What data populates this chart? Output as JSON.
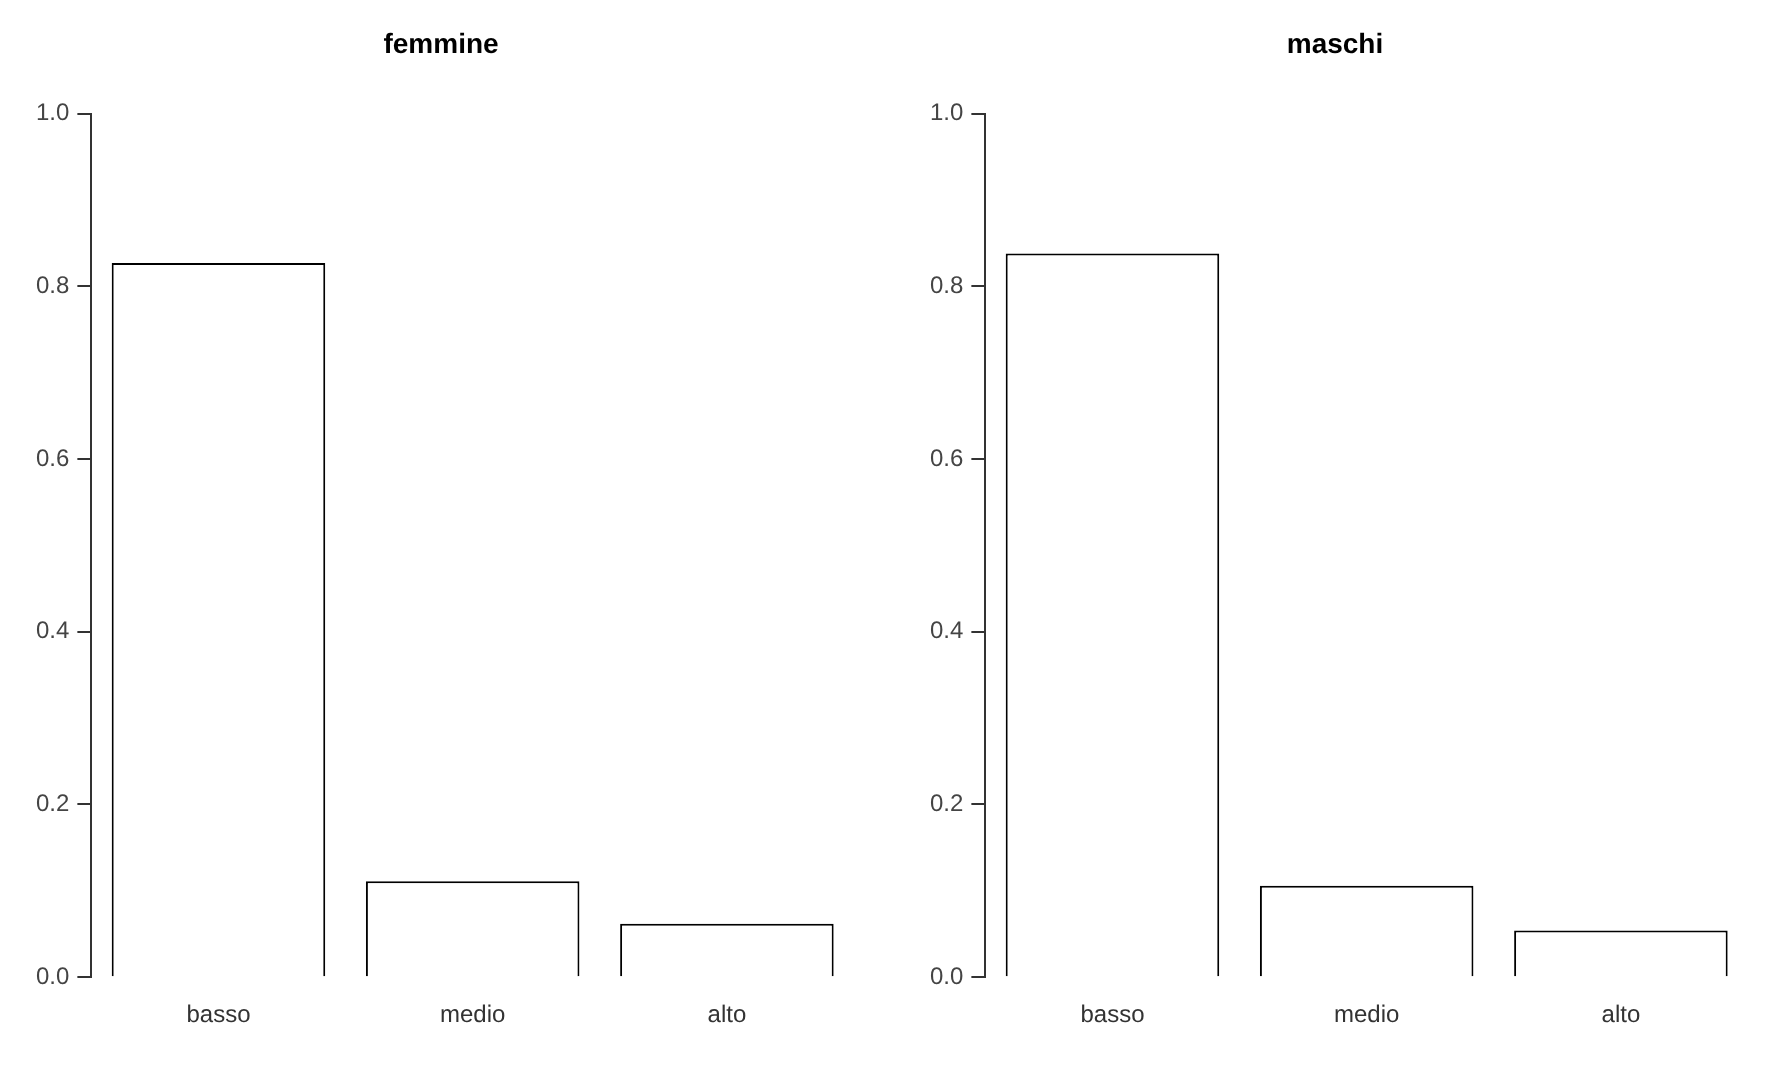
{
  "chart_data": [
    {
      "type": "bar",
      "title": "femmine",
      "categories": [
        "basso",
        "medio",
        "alto"
      ],
      "values": [
        0.827,
        0.111,
        0.062
      ],
      "color": "#ffffff",
      "ylim": [
        0,
        1
      ],
      "yticks": [
        {
          "value": 0,
          "label": "0.0"
        },
        {
          "value": 0.2,
          "label": "0.2"
        },
        {
          "value": 0.4,
          "label": "0.4"
        },
        {
          "value": 0.6,
          "label": "0.6"
        },
        {
          "value": 0.8,
          "label": "0.8"
        },
        {
          "value": 1,
          "label": "1.0"
        }
      ],
      "grid": false
    },
    {
      "type": "bar",
      "title": "maschi",
      "categories": [
        "basso",
        "medio",
        "alto"
      ],
      "values": [
        0.838,
        0.106,
        0.054
      ],
      "color": "#ffffff",
      "ylim": [
        0,
        1
      ],
      "yticks": [
        {
          "value": 0,
          "label": "0.0"
        },
        {
          "value": 0.2,
          "label": "0.2"
        },
        {
          "value": 0.4,
          "label": "0.4"
        },
        {
          "value": 0.6,
          "label": "0.6"
        },
        {
          "value": 0.8,
          "label": "0.8"
        },
        {
          "value": 1,
          "label": "1.0"
        }
      ],
      "grid": false
    }
  ]
}
